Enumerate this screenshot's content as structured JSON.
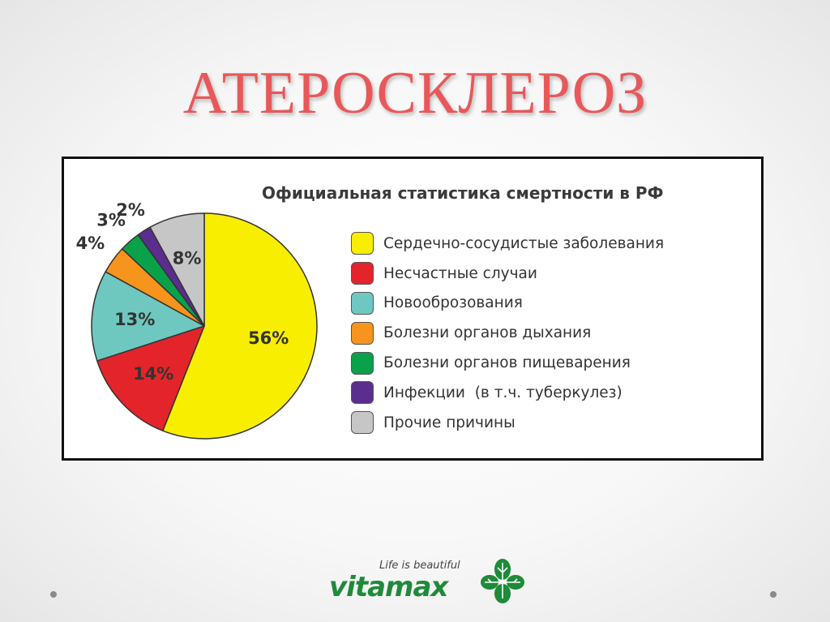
{
  "slide": {
    "title": "АТЕРОСКЛЕРОЗ"
  },
  "chart_data": {
    "type": "pie",
    "title": "Официальная статистика смертности в РФ",
    "legend_placement": "right",
    "slices": [
      {
        "label": "Сердечно-сосудистые заболевания",
        "value": 56,
        "value_label": "56%",
        "color": "#f8ee00"
      },
      {
        "label": "Несчастные случаи",
        "value": 14,
        "value_label": "14%",
        "color": "#e3242b"
      },
      {
        "label": "Новооброзования",
        "value": 13,
        "value_label": "13%",
        "color": "#6ec8c0"
      },
      {
        "label": "Болезни органов дыхания",
        "value": 4,
        "value_label": "4%",
        "color": "#f7941d"
      },
      {
        "label": "Болезни органов пищеварения",
        "value": 3,
        "value_label": "3%",
        "color": "#0aa14b"
      },
      {
        "label": "Инфекции  (в т.ч. туберкулез)",
        "value": 2,
        "value_label": "2%",
        "color": "#5b2d8e"
      },
      {
        "label": "Прочие причины",
        "value": 8,
        "value_label": "8%",
        "color": "#c6c6c6"
      }
    ]
  },
  "logo": {
    "tagline": "Life is beautiful",
    "wordmark": "vitamax",
    "icon": "leaf-icon",
    "color": "#1e8a3a"
  },
  "navigation": {
    "prev_icon": "dot-icon",
    "next_icon": "dot-icon"
  }
}
